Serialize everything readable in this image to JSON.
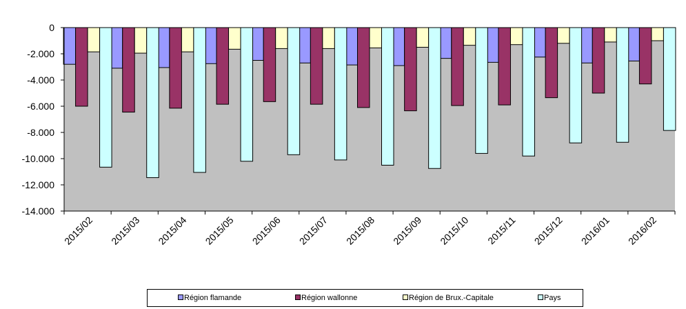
{
  "chart_data": {
    "type": "bar",
    "title": "",
    "xlabel": "",
    "ylabel": "",
    "categories": [
      "2015/02",
      "2015/03",
      "2015/04",
      "2015/05",
      "2015/06",
      "2015/07",
      "2015/08",
      "2015/09",
      "2015/10",
      "2015/11",
      "2015/12",
      "2016/01",
      "2016/02"
    ],
    "ylim": [
      -14000,
      0
    ],
    "yticks": [
      0,
      -2000,
      -4000,
      -6000,
      -8000,
      -10000,
      -12000,
      -14000
    ],
    "ytick_labels": [
      "0",
      "-2.000",
      "-4.000",
      "-6.000",
      "-8.000",
      "-10.000",
      "-12.000",
      "-14.000"
    ],
    "plot_background": "#c0c0c0",
    "grid": false,
    "legend_position": "bottom",
    "series": [
      {
        "name": "Région flamande",
        "color": "#9999ff",
        "values": [
          -2800,
          -3100,
          -3050,
          -2750,
          -2500,
          -2700,
          -2850,
          -2900,
          -2350,
          -2650,
          -2250,
          -2700,
          -2550
        ]
      },
      {
        "name": "Région wallonne",
        "color": "#993366",
        "values": [
          -6000,
          -6450,
          -6150,
          -5850,
          -5650,
          -5850,
          -6100,
          -6350,
          -5950,
          -5900,
          -5350,
          -5000,
          -4300
        ]
      },
      {
        "name": "Région de Brux.-Capitale",
        "color": "#ffffcc",
        "values": [
          -1850,
          -1950,
          -1850,
          -1650,
          -1600,
          -1600,
          -1550,
          -1500,
          -1350,
          -1300,
          -1200,
          -1100,
          -1000
        ]
      },
      {
        "name": "Pays",
        "color": "#ccffff",
        "values": [
          -10650,
          -11450,
          -11050,
          -10200,
          -9700,
          -10100,
          -10500,
          -10750,
          -9600,
          -9800,
          -8800,
          -8750,
          -7850
        ]
      }
    ]
  }
}
